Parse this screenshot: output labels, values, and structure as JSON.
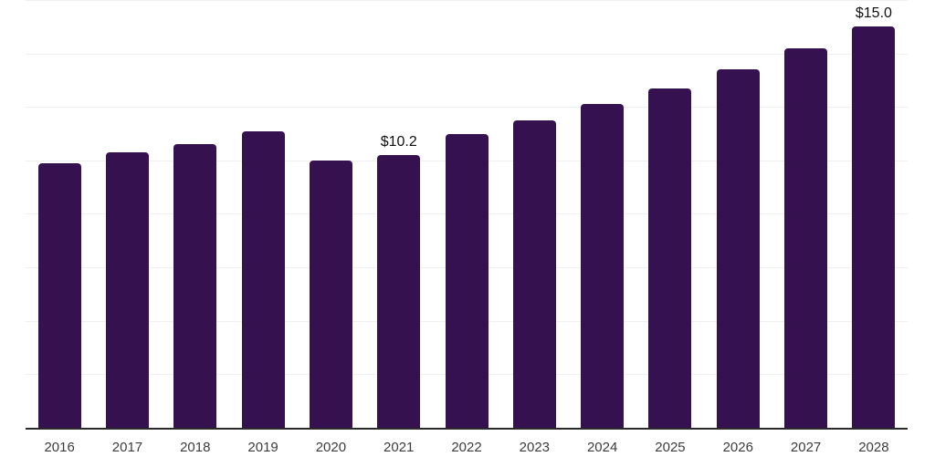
{
  "chart_data": {
    "type": "bar",
    "title": "",
    "xlabel": "",
    "ylabel": "",
    "categories": [
      "2016",
      "2017",
      "2018",
      "2019",
      "2020",
      "2021",
      "2022",
      "2023",
      "2024",
      "2025",
      "2026",
      "2027",
      "2028"
    ],
    "values": [
      9.9,
      10.3,
      10.6,
      11.1,
      10.0,
      10.2,
      11.0,
      11.5,
      12.1,
      12.7,
      13.4,
      14.2,
      15.0
    ],
    "data_labels": [
      "",
      "",
      "",
      "",
      "",
      "$10.2",
      "",
      "",
      "",
      "",
      "",
      "",
      "$15.0"
    ],
    "ylim": [
      0,
      16
    ],
    "grid_step": 2,
    "grid": true,
    "legend_position": "none",
    "y_axis_labels_visible": false
  },
  "colors": {
    "bar": "#36114F",
    "grid": "#efefef",
    "axis": "#2b2b2b",
    "tick_label": "#3c3c3c",
    "data_label": "#101010",
    "background": "#ffffff"
  }
}
